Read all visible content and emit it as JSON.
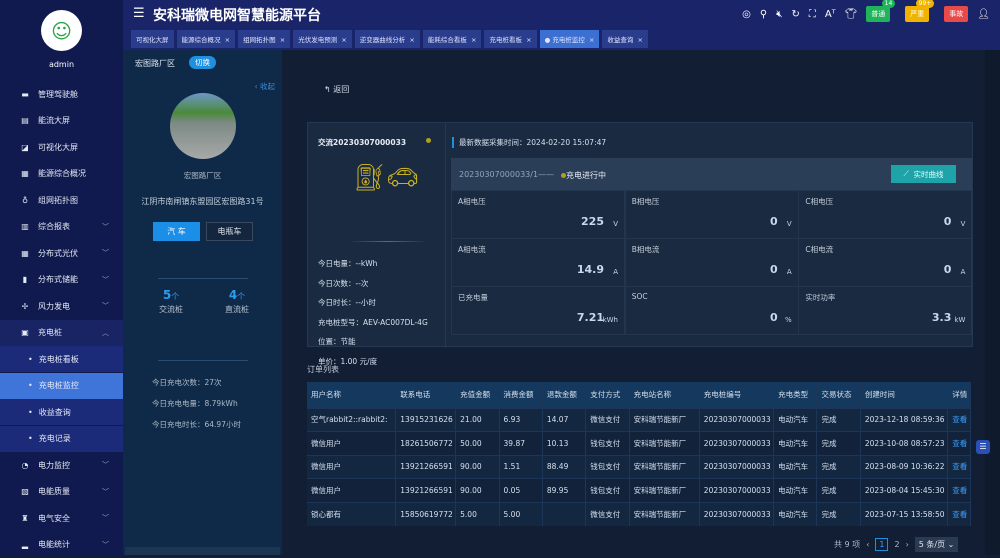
{
  "app": {
    "title": "安科瑞微电网智慧能源平台",
    "user": "admin"
  },
  "header": {
    "badges": [
      {
        "label": "普通",
        "count": "14",
        "color": "#1fb45a"
      },
      {
        "label": "严重",
        "count": "99+",
        "color": "#f0b400"
      },
      {
        "label": "事故",
        "color": "#e84a4a"
      }
    ]
  },
  "tabs": [
    {
      "label": "可视化大屏"
    },
    {
      "label": "能源综合概况"
    },
    {
      "label": "组网拓扑图"
    },
    {
      "label": "光伏发电预测"
    },
    {
      "label": "逆变器曲线分析"
    },
    {
      "label": "能耗综合看板"
    },
    {
      "label": "充电桩看板"
    },
    {
      "label": "充电桩监控",
      "active": true
    },
    {
      "label": "收益查询"
    }
  ],
  "sidebar": {
    "items": [
      {
        "label": "管理驾驶舱",
        "icon": "monitor"
      },
      {
        "label": "能流大屏",
        "icon": "screen"
      },
      {
        "label": "可视化大屏",
        "icon": "chart"
      },
      {
        "label": "能源综合概况",
        "icon": "grid"
      },
      {
        "label": "组网拓扑图",
        "icon": "topology"
      },
      {
        "label": "综合报表",
        "icon": "report",
        "chev": "﹀"
      },
      {
        "label": "分布式光伏",
        "icon": "solar",
        "chev": "﹀"
      },
      {
        "label": "分布式储能",
        "icon": "battery",
        "chev": "﹀"
      },
      {
        "label": "风力发电",
        "icon": "wind",
        "chev": "﹀"
      },
      {
        "label": "充电桩",
        "icon": "charger",
        "chev": "︿"
      }
    ],
    "sub": [
      {
        "label": "充电桩看板"
      },
      {
        "label": "充电桩监控",
        "active": true
      },
      {
        "label": "收益查询"
      },
      {
        "label": "充电记录"
      }
    ],
    "items2": [
      {
        "label": "电力监控",
        "icon": "power",
        "chev": "﹀"
      },
      {
        "label": "电能质量",
        "icon": "quality",
        "chev": "﹀"
      },
      {
        "label": "电气安全",
        "icon": "alarm",
        "chev": "﹀"
      },
      {
        "label": "电能统计",
        "icon": "stats",
        "chev": "﹀"
      }
    ]
  },
  "left": {
    "area": "宏图路厂区",
    "switch": "切换",
    "collapse": "收起",
    "site": "宏图路厂区",
    "address": "江阴市南闸镇东盟园区宏图路31号",
    "btn_car": "汽 车",
    "btn_ebike": "电瓶车",
    "ac_count": "5",
    "dc_count": "4",
    "unit": "个",
    "ac_label": "交流桩",
    "dc_label": "直流桩",
    "stats": [
      "今日充电次数：27次",
      "今日充电电量：8.79kWh",
      "今日充电时长：64.97小时"
    ]
  },
  "main": {
    "back": "返回",
    "pile": {
      "name": "交流20230307000033",
      "info": [
        "今日电量：--kWh",
        "今日次数：--次",
        "今日时长：--小时",
        "充电桩型号：AEV-AC007DL-4G",
        "位置：节能",
        "单价：1.00 元/度"
      ]
    },
    "latest": "最新数据采集时间：2024-02-20 15:07:47",
    "gun": "20230307000033/1——",
    "gun_status": "充电进行中",
    "curve_btn": "实时曲线",
    "metrics": [
      {
        "label": "A相电压",
        "value": "225",
        "unit": "V"
      },
      {
        "label": "B相电压",
        "value": "0",
        "unit": "V"
      },
      {
        "label": "C相电压",
        "value": "0",
        "unit": "V"
      },
      {
        "label": "A相电流",
        "value": "14.9",
        "unit": "A"
      },
      {
        "label": "B相电流",
        "value": "0",
        "unit": "A"
      },
      {
        "label": "C相电流",
        "value": "0",
        "unit": "A"
      },
      {
        "label": "已充电量",
        "value": "7.21",
        "unit": "kWh"
      },
      {
        "label": "SOC",
        "value": "0",
        "unit": "%"
      },
      {
        "label": "实时功率",
        "value": "3.3",
        "unit": "kW"
      }
    ],
    "orders_title": "订单列表",
    "columns": [
      "用户名称",
      "联系电话",
      "充值金额",
      "消费金额",
      "退款金额",
      "支付方式",
      "充电站名称",
      "充电桩编号",
      "充电类型",
      "交易状态",
      "创建时间",
      "详情"
    ],
    "rows": [
      [
        "空气rabbit2::rabbit2:",
        "13915231626",
        "21.00",
        "6.93",
        "14.07",
        "微信支付",
        "安科瑞节能新厂",
        "20230307000033",
        "电动汽车",
        "完成",
        "2023-12-18 08:59:36",
        "查看"
      ],
      [
        "微信用户",
        "18261506772",
        "50.00",
        "39.87",
        "10.13",
        "钱包支付",
        "安科瑞节能新厂",
        "20230307000033",
        "电动汽车",
        "完成",
        "2023-10-08 08:57:23",
        "查看"
      ],
      [
        "微信用户",
        "13921266591",
        "90.00",
        "1.51",
        "88.49",
        "钱包支付",
        "安科瑞节能新厂",
        "20230307000033",
        "电动汽车",
        "完成",
        "2023-08-09 10:36:22",
        "查看"
      ],
      [
        "微信用户",
        "13921266591",
        "90.00",
        "0.05",
        "89.95",
        "钱包支付",
        "安科瑞节能新厂",
        "20230307000033",
        "电动汽车",
        "完成",
        "2023-08-04 15:45:30",
        "查看"
      ],
      [
        "锁心都有",
        "15850619772",
        "5.00",
        "5.00",
        "",
        "微信支付",
        "安科瑞节能新厂",
        "20230307000033",
        "电动汽车",
        "完成",
        "2023-07-15 13:58:50",
        "查看"
      ]
    ],
    "pagination": {
      "total": "共 9 项",
      "pages": [
        "1",
        "2"
      ],
      "current": "1",
      "page_size": "5 条/页"
    }
  }
}
